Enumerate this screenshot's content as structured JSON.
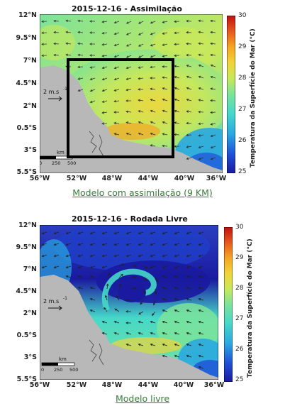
{
  "colors": {
    "caption": "#3a7a3a",
    "land": "#b8b8b8",
    "frame": "#000000",
    "colormap": [
      "#1a1aa0",
      "#1f4fd8",
      "#2aa8e0",
      "#46d8c8",
      "#7be39a",
      "#c8e85a",
      "#f1d43a",
      "#f5a623",
      "#e8581f",
      "#c01010"
    ]
  },
  "map_top": {
    "title": "2015-12-16 - Assimilação",
    "lat_labels": [
      "12°N",
      "9.5°N",
      "7°N",
      "4.5°N",
      "2°N",
      "0.5°S",
      "3°S",
      "5.5°S"
    ],
    "lon_labels": [
      "56°W",
      "52°W",
      "48°W",
      "44°W",
      "40°W",
      "36°W"
    ],
    "vector_scale": "2 m.s",
    "vector_scale_exp": "-1",
    "scalebar_unit": "km",
    "scalebar_ticks": [
      "0",
      "250",
      "500"
    ],
    "colorbar_ticks": [
      "30",
      "29",
      "28",
      "27",
      "26",
      "25"
    ],
    "colorbar_label": "Temperatura da Superfície do Mar (°C)",
    "caption": "Modelo com assimilação (9 KM)"
  },
  "map_bottom": {
    "title": "2015-12-16 - Rodada Livre",
    "lat_labels": [
      "12°N",
      "9.5°N",
      "7°N",
      "4.5°N",
      "2°N",
      "0.5°S",
      "3°S",
      "5.5°S"
    ],
    "lon_labels": [
      "56°W",
      "52°W",
      "48°W",
      "44°W",
      "40°W",
      "36°W"
    ],
    "vector_scale": "2 m.s",
    "vector_scale_exp": "-1",
    "scalebar_unit": "km",
    "scalebar_ticks": [
      "0",
      "250",
      "500"
    ],
    "colorbar_ticks": [
      "30",
      "29",
      "28",
      "27",
      "26",
      "25"
    ],
    "colorbar_label": "Temperatura da Superfície do Mar (°C)",
    "caption": "Modelo livre"
  }
}
